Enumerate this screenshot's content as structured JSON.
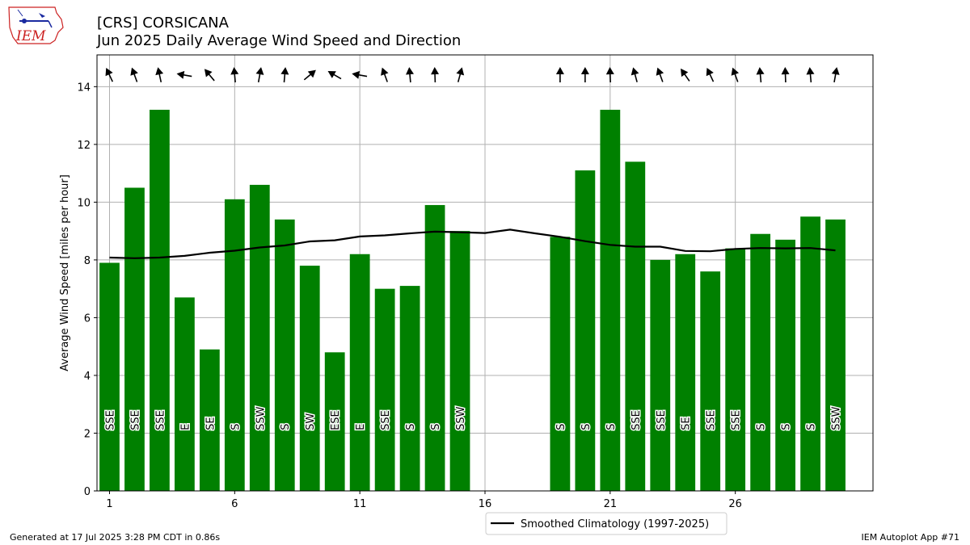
{
  "header": {
    "title_line1": "[CRS] CORSICANA",
    "title_line2": "Jun 2025 Daily Average Wind Speed and Direction"
  },
  "logo": {
    "text": "IEM",
    "icon": "iem-logo-icon"
  },
  "footer": {
    "left": "Generated at 17 Jul 2025 3:28 PM CDT in 0.86s",
    "right": "IEM Autoplot App #71"
  },
  "colors": {
    "bar": "#008000",
    "climatology": "#000000",
    "grid": "#b0b0b0",
    "logo": "#cc2222"
  },
  "chart_data": {
    "type": "bar",
    "title": "Jun 2025 Daily Average Wind Speed and Direction",
    "ylabel": "Average Wind Speed [miles per hour]",
    "xlabel": "",
    "xlim": [
      0.5,
      31.5
    ],
    "ylim": [
      0,
      15.1
    ],
    "xticks": [
      1,
      6,
      11,
      16,
      21,
      26
    ],
    "yticks": [
      0,
      2,
      4,
      6,
      8,
      10,
      12,
      14
    ],
    "grid": true,
    "bars": [
      {
        "day": 1,
        "speed": 7.9,
        "dir": "SSE",
        "deg": 155
      },
      {
        "day": 2,
        "speed": 10.5,
        "dir": "SSE",
        "deg": 160
      },
      {
        "day": 3,
        "speed": 13.2,
        "dir": "SSE",
        "deg": 168
      },
      {
        "day": 4,
        "speed": 6.7,
        "dir": "E",
        "deg": 100
      },
      {
        "day": 5,
        "speed": 4.9,
        "dir": "SE",
        "deg": 140
      },
      {
        "day": 6,
        "speed": 10.1,
        "dir": "S",
        "deg": 175
      },
      {
        "day": 7,
        "speed": 10.6,
        "dir": "SSW",
        "deg": 190
      },
      {
        "day": 8,
        "speed": 9.4,
        "dir": "S",
        "deg": 185
      },
      {
        "day": 9,
        "speed": 7.8,
        "dir": "SW",
        "deg": 230
      },
      {
        "day": 10,
        "speed": 4.8,
        "dir": "ESE",
        "deg": 120
      },
      {
        "day": 11,
        "speed": 8.2,
        "dir": "E",
        "deg": 100
      },
      {
        "day": 12,
        "speed": 7.0,
        "dir": "SSE",
        "deg": 160
      },
      {
        "day": 13,
        "speed": 7.1,
        "dir": "S",
        "deg": 175
      },
      {
        "day": 14,
        "speed": 9.9,
        "dir": "S",
        "deg": 178
      },
      {
        "day": 15,
        "speed": 9.0,
        "dir": "SSW",
        "deg": 195
      },
      {
        "day": 19,
        "speed": 8.8,
        "dir": "S",
        "deg": 180
      },
      {
        "day": 20,
        "speed": 11.1,
        "dir": "S",
        "deg": 180
      },
      {
        "day": 21,
        "speed": 13.2,
        "dir": "S",
        "deg": 178
      },
      {
        "day": 22,
        "speed": 11.4,
        "dir": "SSE",
        "deg": 165
      },
      {
        "day": 23,
        "speed": 8.0,
        "dir": "SSE",
        "deg": 160
      },
      {
        "day": 24,
        "speed": 8.2,
        "dir": "SE",
        "deg": 145
      },
      {
        "day": 25,
        "speed": 7.6,
        "dir": "SSE",
        "deg": 155
      },
      {
        "day": 26,
        "speed": 8.4,
        "dir": "SSE",
        "deg": 160
      },
      {
        "day": 27,
        "speed": 8.9,
        "dir": "S",
        "deg": 175
      },
      {
        "day": 28,
        "speed": 8.7,
        "dir": "S",
        "deg": 178
      },
      {
        "day": 29,
        "speed": 9.5,
        "dir": "S",
        "deg": 175
      },
      {
        "day": 30,
        "speed": 9.4,
        "dir": "SSW",
        "deg": 190
      }
    ],
    "climatology": {
      "name": "Smoothed Climatology (1997-2025)",
      "x": [
        1,
        2,
        3,
        4,
        5,
        6,
        7,
        8,
        9,
        10,
        11,
        12,
        13,
        14,
        15,
        16,
        17,
        18,
        19,
        20,
        21,
        22,
        23,
        24,
        25,
        26,
        27,
        28,
        29,
        30
      ],
      "y": [
        8.08,
        8.06,
        8.08,
        8.14,
        8.25,
        8.32,
        8.43,
        8.5,
        8.64,
        8.68,
        8.81,
        8.85,
        8.92,
        8.98,
        8.96,
        8.93,
        9.05,
        8.92,
        8.8,
        8.65,
        8.52,
        8.46,
        8.46,
        8.31,
        8.3,
        8.38,
        8.41,
        8.4,
        8.41,
        8.33
      ]
    },
    "legend": {
      "position": "bottom-center",
      "label": "Smoothed Climatology (1997-2025)"
    }
  }
}
